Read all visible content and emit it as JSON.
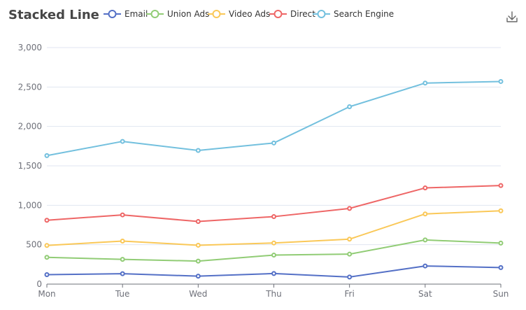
{
  "chart_data": {
    "type": "line",
    "stacked": true,
    "title": "Stacked Line",
    "legend_position": "top",
    "grid": true,
    "x": [
      "Mon",
      "Tue",
      "Wed",
      "Thu",
      "Fri",
      "Sat",
      "Sun"
    ],
    "ylim": [
      0,
      3000
    ],
    "y_ticks": [
      "0",
      "500",
      "1,000",
      "1,500",
      "2,000",
      "2,500",
      "3,000"
    ],
    "series": [
      {
        "name": "Email",
        "color": "#5470c6",
        "values": [
          120,
          132,
          101,
          134,
          90,
          230,
          210
        ]
      },
      {
        "name": "Union Ads",
        "color": "#91cc75",
        "values": [
          220,
          182,
          191,
          234,
          290,
          330,
          310
        ]
      },
      {
        "name": "Video Ads",
        "color": "#fac858",
        "values": [
          150,
          232,
          201,
          154,
          190,
          330,
          410
        ]
      },
      {
        "name": "Direct",
        "color": "#ee6666",
        "values": [
          320,
          332,
          301,
          334,
          390,
          330,
          320
        ]
      },
      {
        "name": "Search Engine",
        "color": "#73c0de",
        "values": [
          820,
          932,
          901,
          934,
          1290,
          1330,
          1320
        ]
      }
    ]
  },
  "toolbox": {
    "icon": "download-icon"
  }
}
